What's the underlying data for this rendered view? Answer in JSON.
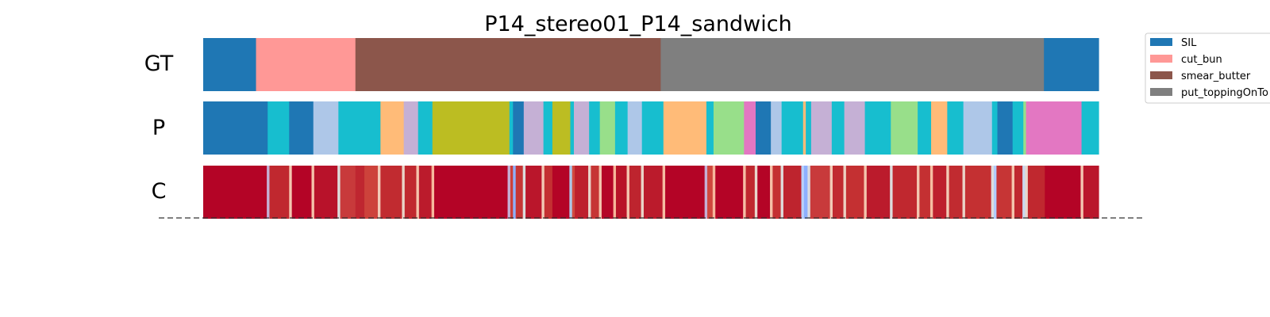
{
  "chart_data": {
    "type": "segmentation-timeline",
    "title": "P14_stereo01_P14_sandwich",
    "rows": [
      {
        "label": "GT",
        "segments": [
          {
            "start": 0.0,
            "end": 0.059,
            "color": "#1f77b4"
          },
          {
            "start": 0.059,
            "end": 0.17,
            "color": "#ff9896"
          },
          {
            "start": 0.17,
            "end": 0.511,
            "color": "#8c564b"
          },
          {
            "start": 0.511,
            "end": 0.939,
            "color": "#7f7f7f"
          },
          {
            "start": 0.939,
            "end": 1.0,
            "color": "#1f77b4"
          }
        ]
      },
      {
        "label": "P",
        "segments": [
          {
            "start": 0.0,
            "end": 0.072,
            "color": "#1f77b4"
          },
          {
            "start": 0.072,
            "end": 0.096,
            "color": "#17becf"
          },
          {
            "start": 0.096,
            "end": 0.123,
            "color": "#1f77b4"
          },
          {
            "start": 0.123,
            "end": 0.151,
            "color": "#aec7e8"
          },
          {
            "start": 0.151,
            "end": 0.198,
            "color": "#17becf"
          },
          {
            "start": 0.198,
            "end": 0.224,
            "color": "#ffbb78"
          },
          {
            "start": 0.224,
            "end": 0.24,
            "color": "#c5b0d5"
          },
          {
            "start": 0.24,
            "end": 0.256,
            "color": "#17becf"
          },
          {
            "start": 0.256,
            "end": 0.342,
            "color": "#bcbd22"
          },
          {
            "start": 0.342,
            "end": 0.346,
            "color": "#17becf"
          },
          {
            "start": 0.346,
            "end": 0.358,
            "color": "#1f77b4"
          },
          {
            "start": 0.358,
            "end": 0.38,
            "color": "#c5b0d5"
          },
          {
            "start": 0.38,
            "end": 0.39,
            "color": "#17becf"
          },
          {
            "start": 0.39,
            "end": 0.41,
            "color": "#bcbd22"
          },
          {
            "start": 0.41,
            "end": 0.414,
            "color": "#17becf"
          },
          {
            "start": 0.414,
            "end": 0.431,
            "color": "#c5b0d5"
          },
          {
            "start": 0.431,
            "end": 0.443,
            "color": "#17becf"
          },
          {
            "start": 0.443,
            "end": 0.46,
            "color": "#98df8a"
          },
          {
            "start": 0.46,
            "end": 0.474,
            "color": "#17becf"
          },
          {
            "start": 0.474,
            "end": 0.49,
            "color": "#aec7e8"
          },
          {
            "start": 0.49,
            "end": 0.514,
            "color": "#17becf"
          },
          {
            "start": 0.514,
            "end": 0.562,
            "color": "#ffbb78"
          },
          {
            "start": 0.562,
            "end": 0.57,
            "color": "#17becf"
          },
          {
            "start": 0.57,
            "end": 0.604,
            "color": "#98df8a"
          },
          {
            "start": 0.604,
            "end": 0.617,
            "color": "#e377c2"
          },
          {
            "start": 0.617,
            "end": 0.634,
            "color": "#1f77b4"
          },
          {
            "start": 0.634,
            "end": 0.646,
            "color": "#aec7e8"
          },
          {
            "start": 0.646,
            "end": 0.67,
            "color": "#17becf"
          },
          {
            "start": 0.67,
            "end": 0.673,
            "color": "#ffbb78"
          },
          {
            "start": 0.673,
            "end": 0.679,
            "color": "#17becf"
          },
          {
            "start": 0.679,
            "end": 0.702,
            "color": "#c5b0d5"
          },
          {
            "start": 0.702,
            "end": 0.716,
            "color": "#17becf"
          },
          {
            "start": 0.716,
            "end": 0.739,
            "color": "#c5b0d5"
          },
          {
            "start": 0.739,
            "end": 0.768,
            "color": "#17becf"
          },
          {
            "start": 0.768,
            "end": 0.798,
            "color": "#98df8a"
          },
          {
            "start": 0.798,
            "end": 0.813,
            "color": "#17becf"
          },
          {
            "start": 0.813,
            "end": 0.831,
            "color": "#ffbb78"
          },
          {
            "start": 0.831,
            "end": 0.849,
            "color": "#17becf"
          },
          {
            "start": 0.849,
            "end": 0.881,
            "color": "#aec7e8"
          },
          {
            "start": 0.881,
            "end": 0.887,
            "color": "#17becf"
          },
          {
            "start": 0.887,
            "end": 0.904,
            "color": "#1f77b4"
          },
          {
            "start": 0.904,
            "end": 0.916,
            "color": "#17becf"
          },
          {
            "start": 0.916,
            "end": 0.919,
            "color": "#98df8a"
          },
          {
            "start": 0.919,
            "end": 0.981,
            "color": "#e377c2"
          },
          {
            "start": 0.981,
            "end": 1.0,
            "color": "#17becf"
          }
        ]
      },
      {
        "label": "C",
        "base_color": "#b40426",
        "segments": [
          {
            "start": 0.0,
            "end": 0.071,
            "color": "#b40426"
          },
          {
            "start": 0.071,
            "end": 0.074,
            "color": "#c5b0d5"
          },
          {
            "start": 0.074,
            "end": 0.096,
            "color": "#c0282f"
          },
          {
            "start": 0.096,
            "end": 0.099,
            "color": "#f4c6b0"
          },
          {
            "start": 0.099,
            "end": 0.121,
            "color": "#b40426"
          },
          {
            "start": 0.121,
            "end": 0.124,
            "color": "#f5c2aa"
          },
          {
            "start": 0.124,
            "end": 0.15,
            "color": "#b8122a"
          },
          {
            "start": 0.15,
            "end": 0.153,
            "color": "#dddcdc"
          },
          {
            "start": 0.153,
            "end": 0.17,
            "color": "#c83a3b"
          },
          {
            "start": 0.17,
            "end": 0.18,
            "color": "#bf2630"
          },
          {
            "start": 0.18,
            "end": 0.195,
            "color": "#cd423b"
          },
          {
            "start": 0.195,
            "end": 0.198,
            "color": "#f2cbb7"
          },
          {
            "start": 0.198,
            "end": 0.222,
            "color": "#c12b30"
          },
          {
            "start": 0.222,
            "end": 0.225,
            "color": "#ead5c9"
          },
          {
            "start": 0.225,
            "end": 0.238,
            "color": "#c0282f"
          },
          {
            "start": 0.238,
            "end": 0.241,
            "color": "#f5c4ac"
          },
          {
            "start": 0.241,
            "end": 0.255,
            "color": "#bb1b2c"
          },
          {
            "start": 0.255,
            "end": 0.258,
            "color": "#f7b89c"
          },
          {
            "start": 0.258,
            "end": 0.34,
            "color": "#b40426"
          },
          {
            "start": 0.34,
            "end": 0.343,
            "color": "#c5b0d5"
          },
          {
            "start": 0.343,
            "end": 0.346,
            "color": "#cc403a"
          },
          {
            "start": 0.346,
            "end": 0.349,
            "color": "#8db0fe"
          },
          {
            "start": 0.349,
            "end": 0.357,
            "color": "#c63535"
          },
          {
            "start": 0.357,
            "end": 0.36,
            "color": "#dcdddd"
          },
          {
            "start": 0.36,
            "end": 0.378,
            "color": "#ba162b"
          },
          {
            "start": 0.378,
            "end": 0.381,
            "color": "#f2c9b4"
          },
          {
            "start": 0.381,
            "end": 0.39,
            "color": "#c43032"
          },
          {
            "start": 0.39,
            "end": 0.409,
            "color": "#b40426"
          },
          {
            "start": 0.409,
            "end": 0.412,
            "color": "#aec7e8"
          },
          {
            "start": 0.412,
            "end": 0.415,
            "color": "#d1493f"
          },
          {
            "start": 0.415,
            "end": 0.43,
            "color": "#bd1f2d"
          },
          {
            "start": 0.43,
            "end": 0.433,
            "color": "#e9d5cb"
          },
          {
            "start": 0.433,
            "end": 0.442,
            "color": "#c63535"
          },
          {
            "start": 0.442,
            "end": 0.445,
            "color": "#f4c5ad"
          },
          {
            "start": 0.445,
            "end": 0.458,
            "color": "#b40426"
          },
          {
            "start": 0.458,
            "end": 0.461,
            "color": "#f7b599"
          },
          {
            "start": 0.461,
            "end": 0.473,
            "color": "#b81328"
          },
          {
            "start": 0.473,
            "end": 0.476,
            "color": "#f4c6b0"
          },
          {
            "start": 0.476,
            "end": 0.489,
            "color": "#be242e"
          },
          {
            "start": 0.489,
            "end": 0.492,
            "color": "#ead4c8"
          },
          {
            "start": 0.492,
            "end": 0.513,
            "color": "#bb1b2c"
          },
          {
            "start": 0.513,
            "end": 0.516,
            "color": "#f6bda2"
          },
          {
            "start": 0.516,
            "end": 0.56,
            "color": "#b40426"
          },
          {
            "start": 0.56,
            "end": 0.563,
            "color": "#c5b0d5"
          },
          {
            "start": 0.563,
            "end": 0.569,
            "color": "#d0473d"
          },
          {
            "start": 0.569,
            "end": 0.572,
            "color": "#f7b89c"
          },
          {
            "start": 0.572,
            "end": 0.603,
            "color": "#b40426"
          },
          {
            "start": 0.603,
            "end": 0.606,
            "color": "#f6bfa6"
          },
          {
            "start": 0.606,
            "end": 0.616,
            "color": "#c0282f"
          },
          {
            "start": 0.616,
            "end": 0.619,
            "color": "#e8d6cc"
          },
          {
            "start": 0.619,
            "end": 0.633,
            "color": "#b40426"
          },
          {
            "start": 0.633,
            "end": 0.636,
            "color": "#f5c0a7"
          },
          {
            "start": 0.636,
            "end": 0.645,
            "color": "#c43032"
          },
          {
            "start": 0.645,
            "end": 0.648,
            "color": "#dedcdb"
          },
          {
            "start": 0.648,
            "end": 0.668,
            "color": "#be242e"
          },
          {
            "start": 0.668,
            "end": 0.671,
            "color": "#b9d0f9"
          },
          {
            "start": 0.671,
            "end": 0.675,
            "color": "#8db0fe"
          },
          {
            "start": 0.675,
            "end": 0.678,
            "color": "#dadce0"
          },
          {
            "start": 0.678,
            "end": 0.7,
            "color": "#c83a3b"
          },
          {
            "start": 0.7,
            "end": 0.703,
            "color": "#f2cbb7"
          },
          {
            "start": 0.703,
            "end": 0.715,
            "color": "#c12b30"
          },
          {
            "start": 0.715,
            "end": 0.718,
            "color": "#edd1c2"
          },
          {
            "start": 0.718,
            "end": 0.738,
            "color": "#c43032"
          },
          {
            "start": 0.738,
            "end": 0.741,
            "color": "#f4c5ad"
          },
          {
            "start": 0.741,
            "end": 0.767,
            "color": "#bb1b2c"
          },
          {
            "start": 0.767,
            "end": 0.77,
            "color": "#dcdddd"
          },
          {
            "start": 0.77,
            "end": 0.797,
            "color": "#c0282f"
          },
          {
            "start": 0.797,
            "end": 0.8,
            "color": "#f3c7b1"
          },
          {
            "start": 0.8,
            "end": 0.812,
            "color": "#c43032"
          },
          {
            "start": 0.812,
            "end": 0.815,
            "color": "#f6bda2"
          },
          {
            "start": 0.815,
            "end": 0.83,
            "color": "#bd1f2d"
          },
          {
            "start": 0.83,
            "end": 0.833,
            "color": "#f2cab5"
          },
          {
            "start": 0.833,
            "end": 0.848,
            "color": "#c12b30"
          },
          {
            "start": 0.848,
            "end": 0.851,
            "color": "#ebd3c6"
          },
          {
            "start": 0.851,
            "end": 0.88,
            "color": "#c43032"
          },
          {
            "start": 0.88,
            "end": 0.883,
            "color": "#dddcdc"
          },
          {
            "start": 0.883,
            "end": 0.886,
            "color": "#b2ccfb"
          },
          {
            "start": 0.886,
            "end": 0.903,
            "color": "#c63535"
          },
          {
            "start": 0.903,
            "end": 0.906,
            "color": "#f4c5ad"
          },
          {
            "start": 0.906,
            "end": 0.915,
            "color": "#c0282f"
          },
          {
            "start": 0.915,
            "end": 0.918,
            "color": "#cad8ef"
          },
          {
            "start": 0.918,
            "end": 0.921,
            "color": "#e8d6cc"
          },
          {
            "start": 0.921,
            "end": 0.94,
            "color": "#c0282f"
          },
          {
            "start": 0.94,
            "end": 0.98,
            "color": "#b40426"
          },
          {
            "start": 0.98,
            "end": 0.983,
            "color": "#f4c6b0"
          },
          {
            "start": 0.983,
            "end": 1.0,
            "color": "#ba162b"
          }
        ]
      }
    ],
    "legend": {
      "placement": "top-right",
      "entries": [
        {
          "label": "SIL",
          "color": "#1f77b4"
        },
        {
          "label": "cut_bun",
          "color": "#ff9896"
        },
        {
          "label": "smear_butter",
          "color": "#8c564b"
        },
        {
          "label": "put_toppingOnTo",
          "color": "#7f7f7f"
        }
      ]
    },
    "separator": {
      "style": "dashed",
      "color": "#333333"
    }
  }
}
